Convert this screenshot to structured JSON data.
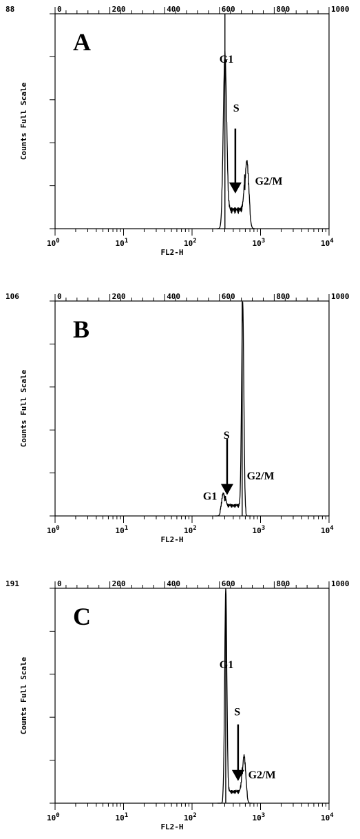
{
  "chart_data": [
    {
      "type": "line",
      "panel_label": "A",
      "ymax_label": "88",
      "ylabel": "Counts Full Scale",
      "xlabel": "FL2-H",
      "x_scale": "log",
      "xlim": [
        1,
        10000
      ],
      "bottom_ticks": [
        "10^0",
        "10^1",
        "10^2",
        "10^3",
        "10^4"
      ],
      "top_ticks": [
        "0",
        "200",
        "400",
        "600",
        "800",
        "1000"
      ],
      "top_xlim": [
        0,
        1000
      ],
      "ylim": [
        0,
        88
      ],
      "marker_channel": 620,
      "peaks": [
        {
          "label": "G1",
          "channel": 620,
          "height": 70,
          "sigma": 6
        },
        {
          "label": "G2/M",
          "channel": 700,
          "height": 26,
          "sigma": 7
        }
      ],
      "s_phase_level": 6,
      "annotations": [
        {
          "text": "G1",
          "x": 600,
          "y": 68
        },
        {
          "text": "S",
          "x": 650,
          "y": 48
        },
        {
          "text": "G2/M",
          "x": 730,
          "y": 18
        }
      ],
      "arrow": {
        "x": 658,
        "y_top": 41,
        "y_bottom": 15
      }
    },
    {
      "type": "line",
      "panel_label": "B",
      "ymax_label": "106",
      "ylabel": "Counts Full Scale",
      "xlabel": "FL2-H",
      "x_scale": "log",
      "xlim": [
        1,
        10000
      ],
      "bottom_ticks": [
        "10^0",
        "10^1",
        "10^2",
        "10^3",
        "10^4"
      ],
      "top_ticks": [
        "0",
        "200",
        "400",
        "600",
        "800",
        "1000"
      ],
      "top_xlim": [
        0,
        1000
      ],
      "ylim": [
        0,
        106
      ],
      "marker_channel": 683,
      "peaks": [
        {
          "label": "G1",
          "channel": 614,
          "height": 10,
          "sigma": 6
        },
        {
          "label": "G2/M",
          "channel": 685,
          "height": 104,
          "sigma": 4
        }
      ],
      "s_phase_level": 4,
      "annotations": [
        {
          "text": "S",
          "x": 615,
          "y": 38
        },
        {
          "text": "G1",
          "x": 540,
          "y": 8
        },
        {
          "text": "G2/M",
          "x": 700,
          "y": 18
        }
      ],
      "arrow": {
        "x": 628,
        "y_top": 38,
        "y_bottom": 11
      }
    },
    {
      "type": "line",
      "panel_label": "C",
      "ymax_label": "191",
      "ylabel": "Counts Full Scale",
      "xlabel": "FL2-H",
      "x_scale": "log",
      "xlim": [
        1,
        10000
      ],
      "bottom_ticks": [
        "10^0",
        "10^1",
        "10^2",
        "10^3",
        "10^4"
      ],
      "top_ticks": [
        "0",
        "200",
        "400",
        "600",
        "800",
        "1000"
      ],
      "top_xlim": [
        0,
        1000
      ],
      "ylim": [
        0,
        191
      ],
      "marker_channel": 623,
      "peaks": [
        {
          "label": "G1",
          "channel": 623,
          "height": 188,
          "sigma": 4
        },
        {
          "label": "G2/M",
          "channel": 690,
          "height": 40,
          "sigma": 6
        }
      ],
      "s_phase_level": 8,
      "annotations": [
        {
          "text": "G1",
          "x": 600,
          "y": 120
        },
        {
          "text": "S",
          "x": 654,
          "y": 78
        },
        {
          "text": "G2/M",
          "x": 705,
          "y": 22
        }
      ],
      "arrow": {
        "x": 668,
        "y_top": 70,
        "y_bottom": 21
      }
    }
  ]
}
